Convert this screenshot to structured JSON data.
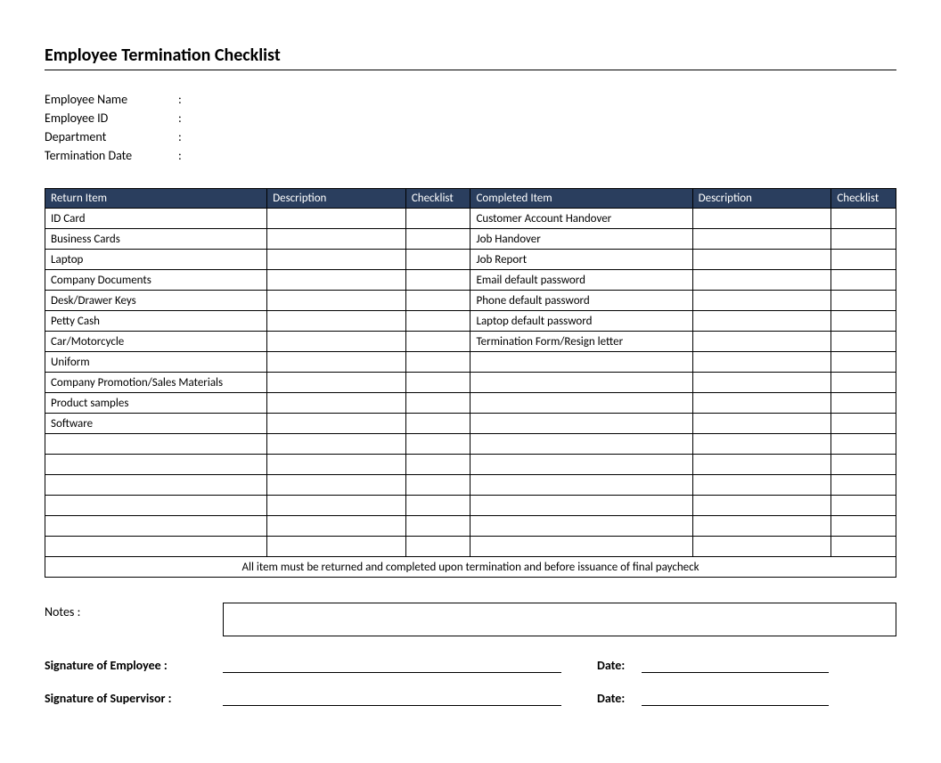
{
  "title": "Employee Termination Checklist",
  "meta": {
    "employee_name_label": "Employee Name",
    "employee_id_label": "Employee ID",
    "department_label": "Department",
    "termination_date_label": "Termination Date"
  },
  "table": {
    "headers": {
      "return_item": "Return Item",
      "description1": "Description",
      "checklist1": "Checklist",
      "completed_item": "Completed Item",
      "description2": "Description",
      "checklist2": "Checklist"
    },
    "header_bg": "#2a3e5e",
    "header_fg": "#ffffff",
    "rows": [
      {
        "return": "ID Card",
        "completed": "Customer Account Handover"
      },
      {
        "return": "Business Cards",
        "completed": "Job Handover"
      },
      {
        "return": "Laptop",
        "completed": "Job Report"
      },
      {
        "return": "Company Documents",
        "completed": "Email default password"
      },
      {
        "return": "Desk/Drawer Keys",
        "completed": "Phone default password"
      },
      {
        "return": "Petty Cash",
        "completed": "Laptop default password"
      },
      {
        "return": "Car/Motorcycle",
        "completed": "Termination Form/Resign letter"
      },
      {
        "return": "Uniform",
        "completed": ""
      },
      {
        "return": "Company Promotion/Sales Materials",
        "completed": ""
      },
      {
        "return": "Product samples",
        "completed": ""
      },
      {
        "return": "Software",
        "completed": ""
      },
      {
        "return": "",
        "completed": ""
      },
      {
        "return": "",
        "completed": ""
      },
      {
        "return": "",
        "completed": ""
      },
      {
        "return": "",
        "completed": ""
      },
      {
        "return": "",
        "completed": ""
      },
      {
        "return": "",
        "completed": ""
      }
    ],
    "footnote": "All item must be returned and completed upon termination and before issuance of final paycheck"
  },
  "footer": {
    "notes_label": "Notes :",
    "sig_employee": "Signature of Employee :",
    "sig_supervisor": "Signature of Supervisor :",
    "date_label": "Date:"
  }
}
